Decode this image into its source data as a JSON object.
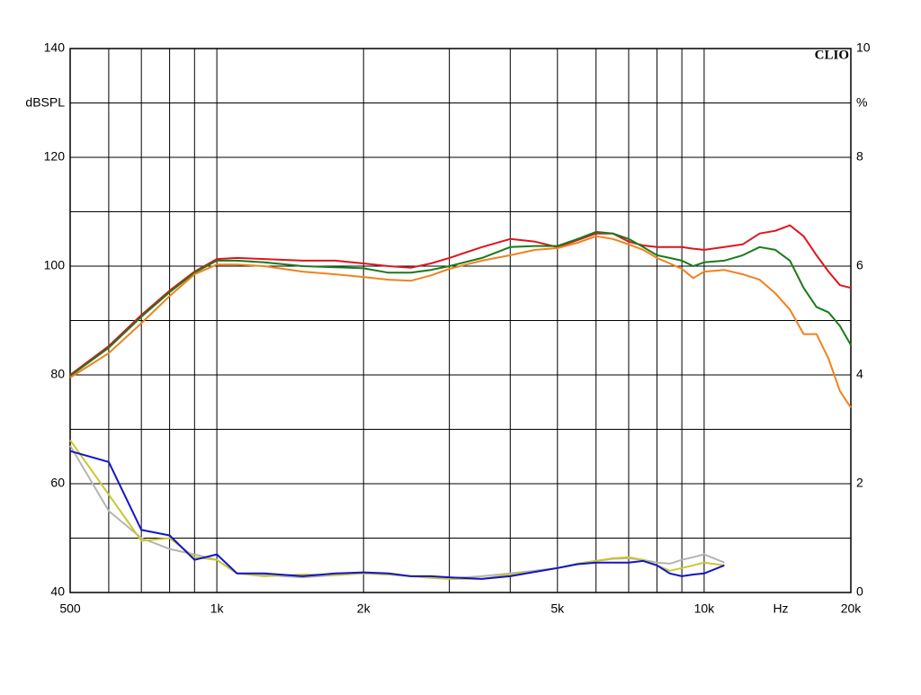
{
  "chart_data": {
    "type": "line",
    "brand": "CLIO",
    "y_label": "dBSPL",
    "y2_label": "%",
    "x_label": "Hz",
    "x_scale": "log",
    "grid": true,
    "xlim": [
      500,
      20000
    ],
    "xticks": [
      500,
      {
        "value": 1000,
        "label": "1k"
      },
      {
        "value": 2000,
        "label": "2k"
      },
      {
        "value": 5000,
        "label": "5k"
      },
      {
        "value": 10000,
        "label": "10k"
      },
      {
        "value": 20000,
        "label": "20k"
      }
    ],
    "minor_xticks": [
      600,
      700,
      800,
      900,
      3000,
      4000,
      6000,
      7000,
      8000,
      9000
    ],
    "ylim": [
      40,
      140
    ],
    "yticks": [
      40,
      60,
      80,
      100,
      120,
      140
    ],
    "minor_yticks": [
      50,
      70,
      90,
      110,
      130
    ],
    "y2lim": [
      0,
      10
    ],
    "y2ticks": [
      0,
      2,
      4,
      6,
      8,
      10
    ],
    "x": [
      500,
      600,
      700,
      800,
      900,
      1000,
      1100,
      1250,
      1500,
      1750,
      2000,
      2250,
      2500,
      2750,
      3000,
      3500,
      4000,
      4500,
      5000,
      5500,
      6000,
      6500,
      7000,
      7500,
      8000,
      8500,
      9000,
      9500,
      10000,
      11000,
      12000,
      13000,
      14000,
      15000,
      16000,
      17000,
      18000,
      19000,
      20000
    ],
    "series": [
      {
        "color": "#e0141e",
        "values": [
          80,
          85.3,
          91,
          95.5,
          99,
          101.3,
          101.5,
          101.3,
          101,
          101,
          100.5,
          100,
          99.7,
          100.5,
          101.5,
          103.5,
          105,
          104.5,
          103.5,
          104.8,
          106,
          106,
          104.5,
          103.8,
          103.5,
          103.5,
          103.5,
          103.2,
          103,
          103.5,
          104,
          106,
          106.5,
          107.5,
          105.5,
          102,
          99,
          96.5,
          96
        ]
      },
      {
        "color": "#1a7a1a",
        "values": [
          79.8,
          85,
          90.7,
          95.2,
          98.8,
          101,
          101,
          100.7,
          100,
          99.8,
          99.6,
          98.8,
          98.8,
          99.3,
          100,
          101.5,
          103.5,
          103.7,
          103.7,
          105,
          106.3,
          106,
          105,
          103.5,
          102,
          101.5,
          101,
          100,
          100.7,
          101,
          102,
          103.5,
          103,
          101,
          96,
          92.5,
          91.5,
          89,
          85.5
        ]
      },
      {
        "color": "#f0821e",
        "values": [
          79.5,
          84,
          89.5,
          94.5,
          98.5,
          100.3,
          100.3,
          100,
          99,
          98.5,
          98,
          97.5,
          97.3,
          98.3,
          99.5,
          101,
          102,
          103,
          103.3,
          104.3,
          105.5,
          105,
          104,
          103,
          101.5,
          100.5,
          99.5,
          97.8,
          99,
          99.3,
          98.5,
          97.5,
          95,
          92,
          87.5,
          87.5,
          83,
          77,
          74
        ]
      },
      {
        "color": "#b4b4b4",
        "values": [
          67,
          55,
          50,
          48,
          47,
          46,
          43.5,
          43.2,
          42.8,
          43.2,
          43.5,
          43.3,
          43,
          42.8,
          42.6,
          43,
          43.5,
          44,
          44.5,
          45.3,
          45.8,
          46.2,
          46.3,
          46,
          45.5,
          45.3,
          46,
          46.5,
          47,
          45.5,
          null,
          null,
          null,
          null,
          null,
          null,
          null,
          null,
          null
        ]
      },
      {
        "color": "#c8c832",
        "values": [
          68,
          58,
          49.5,
          50,
          46.5,
          46,
          43.5,
          43,
          43.3,
          43.2,
          43.5,
          43.3,
          43,
          42.7,
          42.5,
          42.5,
          43.3,
          43.8,
          44.5,
          45.3,
          45.8,
          46.3,
          46.5,
          46,
          45,
          44,
          44.5,
          45,
          45.5,
          45,
          null,
          null,
          null,
          null,
          null,
          null,
          null,
          null,
          null
        ]
      },
      {
        "color": "#1414c8",
        "values": [
          66,
          64,
          51.5,
          50.5,
          46,
          47,
          43.5,
          43.5,
          43,
          43.5,
          43.7,
          43.5,
          43,
          43,
          42.8,
          42.5,
          43,
          43.8,
          44.5,
          45.2,
          45.5,
          45.5,
          45.5,
          45.8,
          45,
          43.5,
          43,
          43.3,
          43.5,
          45,
          null,
          null,
          null,
          null,
          null,
          null,
          null,
          null,
          null
        ]
      }
    ]
  }
}
